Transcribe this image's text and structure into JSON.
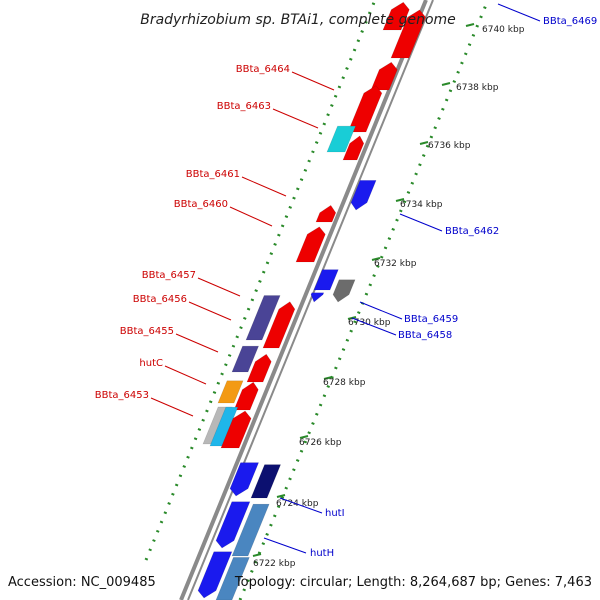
{
  "title": "Bradyrhizobium sp. BTAi1, complete genome",
  "footer": {
    "accession": "Accession: NC_009485",
    "topology": "Topology: circular; Length: 8,264,687 bp; Genes: 7,463"
  },
  "colors": {
    "backbone": "#8a8a8a",
    "tick": "#2a8a2a",
    "forward_label": "#cc0000",
    "reverse_label": "#0000cc",
    "gene_red": "#ee0000",
    "gene_blue": "#1a1aee",
    "gene_cyan": "#19cdd6",
    "gene_purple": "#4a4496",
    "gene_navy": "#0c1070",
    "gene_steel": "#4a86c0",
    "gene_orange": "#f39a14",
    "gene_gray": "#6c6c6c",
    "gene_lightgray": "#b8b8b8",
    "gene_skyblue": "#1fb6ea"
  },
  "kbp_ticks": [
    {
      "label": "6740 kbp"
    },
    {
      "label": "6738 kbp"
    },
    {
      "label": "6736 kbp"
    },
    {
      "label": "6734 kbp"
    },
    {
      "label": "6732 kbp"
    },
    {
      "label": "6730 kbp"
    },
    {
      "label": "6728 kbp"
    },
    {
      "label": "6726 kbp"
    },
    {
      "label": "6724 kbp"
    },
    {
      "label": "6722 kbp"
    }
  ],
  "forward_labels": [
    {
      "text": "BBta_6464"
    },
    {
      "text": "BBta_6463"
    },
    {
      "text": "BBta_6461"
    },
    {
      "text": "BBta_6460"
    },
    {
      "text": "BBta_6457"
    },
    {
      "text": "BBta_6456"
    },
    {
      "text": "BBta_6455"
    },
    {
      "text": "hutC"
    },
    {
      "text": "BBta_6453"
    }
  ],
  "reverse_labels": [
    {
      "text": "BBta_6469"
    },
    {
      "text": "BBta_6462"
    },
    {
      "text": "BBta_6459"
    },
    {
      "text": "BBta_6458"
    },
    {
      "text": "hutI"
    },
    {
      "text": "hutH"
    }
  ]
}
